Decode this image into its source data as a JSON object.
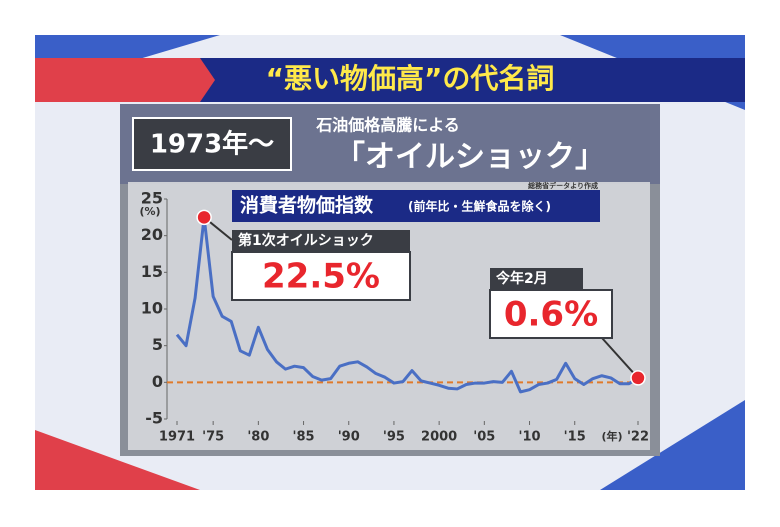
{
  "header": {
    "title": "“悪い物価高”の代名詞"
  },
  "caption": {
    "era": "1973年～",
    "subtitle": "石油価格高騰による",
    "headline": "「オイルショック」"
  },
  "chart_data": {
    "type": "line",
    "title": "消費者物価指数",
    "subtitle": "(前年比・生鮮食品を除く)",
    "source": "総務省データより作成",
    "y_label": "(%)",
    "x_label": "(年)",
    "x": [
      1971,
      1972,
      1973,
      1974,
      1975,
      1976,
      1977,
      1978,
      1979,
      1980,
      1981,
      1982,
      1983,
      1984,
      1985,
      1986,
      1987,
      1988,
      1989,
      1990,
      1991,
      1992,
      1993,
      1994,
      1995,
      1996,
      1997,
      1998,
      1999,
      2000,
      2001,
      2002,
      2003,
      2004,
      2005,
      2006,
      2007,
      2008,
      2009,
      2010,
      2011,
      2012,
      2013,
      2014,
      2015,
      2016,
      2017,
      2018,
      2019,
      2020,
      2021,
      2022
    ],
    "series": [
      {
        "name": "消費者物価指数",
        "color": "#4a6fc4",
        "values": [
          6.5,
          5.0,
          11.5,
          22.5,
          11.7,
          9.0,
          8.3,
          4.3,
          3.7,
          7.5,
          4.5,
          2.8,
          1.8,
          2.2,
          2.0,
          0.8,
          0.3,
          0.5,
          2.2,
          2.6,
          2.8,
          2.1,
          1.2,
          0.7,
          -0.1,
          0.1,
          1.6,
          0.2,
          -0.1,
          -0.4,
          -0.8,
          -0.9,
          -0.3,
          -0.1,
          -0.1,
          0.1,
          0.0,
          1.5,
          -1.3,
          -1.0,
          -0.3,
          -0.1,
          0.4,
          2.6,
          0.5,
          -0.3,
          0.5,
          0.9,
          0.6,
          -0.2,
          -0.2,
          0.6
        ]
      }
    ],
    "xlim": [
      1971,
      2022
    ],
    "xticks": [
      1971,
      {
        "value": 1975,
        "label": "'75"
      },
      {
        "value": 1980,
        "label": "'80"
      },
      {
        "value": 1985,
        "label": "'85"
      },
      {
        "value": 1990,
        "label": "'90"
      },
      {
        "value": 1995,
        "label": "'95"
      },
      2000,
      {
        "value": 2005,
        "label": "'05"
      },
      {
        "value": 2010,
        "label": "'10"
      },
      {
        "value": 2015,
        "label": "'15"
      },
      {
        "value": 2022,
        "label": "'22"
      }
    ],
    "ylim": [
      -5,
      25
    ],
    "yticks": [
      -5,
      0,
      5,
      10,
      15,
      20,
      25
    ],
    "zero_line_color": "#e07a2a",
    "annotations": [
      {
        "text": "第1次オイルショック",
        "x": 1974,
        "value": 22.5,
        "value_label": "22.5%"
      },
      {
        "text": "今年2月",
        "x": 2022,
        "value": 0.6,
        "value_label": "0.6%"
      }
    ]
  }
}
